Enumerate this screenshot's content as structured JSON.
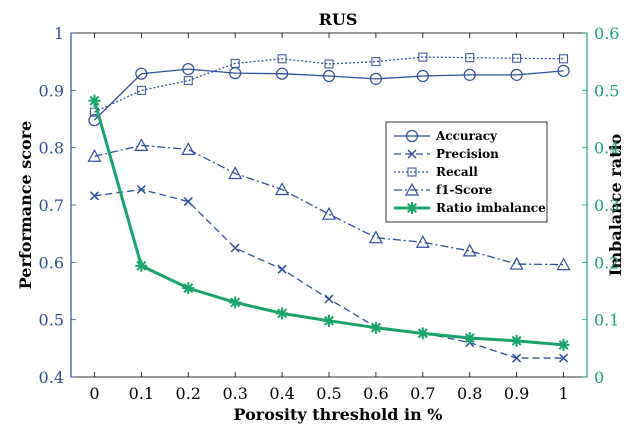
{
  "chart_data": {
    "type": "line",
    "title": "RUS",
    "xlabel": "Porosity threshold in %",
    "ylabel": "Performance score",
    "y2label": "Imbalance ratio",
    "x": [
      0,
      0.1,
      0.2,
      0.3,
      0.4,
      0.5,
      0.6,
      0.7,
      0.8,
      0.9,
      1
    ],
    "x_tick_labels": [
      "0",
      "0.1",
      "0.2",
      "0.3",
      "0.4",
      "0.5",
      "0.6",
      "0.7",
      "0.8",
      "0.9",
      "1"
    ],
    "xlim": [
      -0.05,
      1.05
    ],
    "ylim": [
      0.4,
      1.0
    ],
    "y_tick_labels": [
      "0.4",
      "0.5",
      "0.6",
      "0.7",
      "0.8",
      "0.9",
      "1"
    ],
    "y2lim": [
      0,
      0.6
    ],
    "y2_tick_labels": [
      "0",
      "0.1",
      "0.2",
      "0.3",
      "0.4",
      "0.5",
      "0.6"
    ],
    "grid": false,
    "legend_position": "right",
    "colors": {
      "left_axis": "#2e4e9b",
      "right_axis": "#1aa36b",
      "series_blue": "#2e4e9b",
      "series_green": "#1aa36b"
    },
    "series": [
      {
        "name": "Accuracy",
        "axis": "left",
        "marker": "circle",
        "line": "solid",
        "values": [
          0.848,
          0.929,
          0.937,
          0.93,
          0.929,
          0.925,
          0.92,
          0.925,
          0.927,
          0.927,
          0.934
        ]
      },
      {
        "name": "Precision",
        "axis": "left",
        "marker": "x",
        "line": "dashed",
        "values": [
          0.716,
          0.727,
          0.706,
          0.625,
          0.588,
          0.536,
          0.487,
          0.477,
          0.46,
          0.433,
          0.433
        ]
      },
      {
        "name": "Recall",
        "axis": "left",
        "marker": "square",
        "line": "dotted",
        "values": [
          0.862,
          0.9,
          0.917,
          0.947,
          0.955,
          0.946,
          0.95,
          0.958,
          0.957,
          0.956,
          0.955
        ]
      },
      {
        "name": "f1-Score",
        "axis": "left",
        "marker": "triangle",
        "line": "dashdot",
        "values": [
          0.785,
          0.804,
          0.797,
          0.755,
          0.727,
          0.684,
          0.643,
          0.635,
          0.62,
          0.597,
          0.596
        ]
      },
      {
        "name": "Ratio imbalance",
        "axis": "right",
        "marker": "star",
        "line": "solid",
        "values": [
          0.482,
          0.194,
          0.155,
          0.13,
          0.111,
          0.098,
          0.086,
          0.076,
          0.068,
          0.063,
          0.056
        ]
      }
    ]
  }
}
